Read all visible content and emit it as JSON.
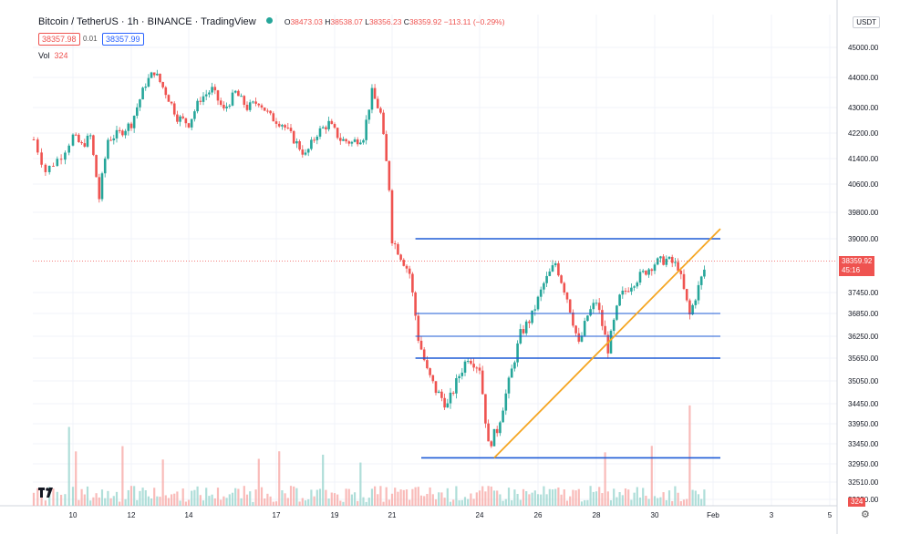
{
  "header": {
    "symbol": "Bitcoin / TetherUS",
    "interval": "1h",
    "exchange": "BINANCE",
    "platform": "TradingView",
    "open": "38473.03",
    "high": "38538.07",
    "low": "38356.23",
    "close": "38359.92",
    "change": "−113.11 (−0.29%)",
    "status_color": "#26a69a"
  },
  "quote": {
    "bid": "38357.98",
    "spread": "0.01",
    "ask": "38357.99"
  },
  "volume": {
    "label": "Vol",
    "value": "324"
  },
  "currency": "USDT",
  "last_price": {
    "value": "38359.92",
    "countdown": "45:16"
  },
  "colors": {
    "up": "#26a69a",
    "down": "#ef5350",
    "hline": "#1e5bd6",
    "trend": "#f5a623"
  },
  "icons": {
    "logo": "tradingview-logo-icon",
    "settings": "gear-icon"
  },
  "chart_data": {
    "type": "candlestick",
    "y_ticks": [
      "45000.00",
      "44000.00",
      "43000.00",
      "42200.00",
      "41400.00",
      "40600.00",
      "39800.00",
      "39000.00",
      "37450.00",
      "36850.00",
      "36250.00",
      "35650.00",
      "35050.00",
      "34450.00",
      "33950.00",
      "33450.00",
      "32950.00",
      "32510.00",
      "32050.00"
    ],
    "x_ticks": [
      "10",
      "12",
      "14",
      "17",
      "19",
      "21",
      "24",
      "26",
      "28",
      "30",
      "Feb",
      "3",
      "5"
    ],
    "ylim": [
      32050,
      45300
    ],
    "horizontal_levels": [
      39000,
      36850,
      36250,
      35650,
      33100
    ],
    "trendline": {
      "start": [
        "24",
        33100
      ],
      "end": [
        "Feb",
        39300
      ]
    },
    "close_path": [
      [
        "9",
        42000
      ],
      [
        "9.3",
        41000
      ],
      [
        "9.7",
        41500
      ],
      [
        "10",
        42100
      ],
      [
        "10.3",
        41800
      ],
      [
        "10.6",
        42100
      ],
      [
        "10.9",
        40200
      ],
      [
        "11.2",
        42000
      ],
      [
        "11.6",
        42200
      ],
      [
        "12",
        42500
      ],
      [
        "12.5",
        43800
      ],
      [
        "12.8",
        44200
      ],
      [
        "13.2",
        43500
      ],
      [
        "13.6",
        42700
      ],
      [
        "14",
        42500
      ],
      [
        "14.4",
        43300
      ],
      [
        "14.8",
        43600
      ],
      [
        "15.2",
        42900
      ],
      [
        "15.6",
        43500
      ],
      [
        "16",
        43000
      ],
      [
        "16.4",
        43200
      ],
      [
        "16.8",
        42700
      ],
      [
        "17.2",
        42500
      ],
      [
        "17.6",
        42000
      ],
      [
        "18",
        41500
      ],
      [
        "18.4",
        42200
      ],
      [
        "18.8",
        42500
      ],
      [
        "19.2",
        42000
      ],
      [
        "19.6",
        41900
      ],
      [
        "20",
        42100
      ],
      [
        "20.3",
        43500
      ],
      [
        "20.6",
        42800
      ],
      [
        "20.9",
        40500
      ],
      [
        "21",
        39000
      ],
      [
        "21.3",
        38500
      ],
      [
        "21.6",
        38000
      ],
      [
        "21.9",
        36200
      ],
      [
        "22.2",
        35300
      ],
      [
        "22.5",
        34800
      ],
      [
        "22.9",
        34400
      ],
      [
        "23.3",
        35200
      ],
      [
        "23.6",
        35700
      ],
      [
        "24",
        35400
      ],
      [
        "24.3",
        33400
      ],
      [
        "24.6",
        33800
      ],
      [
        "25",
        35000
      ],
      [
        "25.4",
        36300
      ],
      [
        "25.8",
        36800
      ],
      [
        "26.2",
        37700
      ],
      [
        "26.6",
        38300
      ],
      [
        "27",
        37300
      ],
      [
        "27.4",
        36000
      ],
      [
        "27.7",
        36800
      ],
      [
        "28",
        37200
      ],
      [
        "28.4",
        35900
      ],
      [
        "28.8",
        37300
      ],
      [
        "29.2",
        37700
      ],
      [
        "29.6",
        38000
      ],
      [
        "30",
        38300
      ],
      [
        "30.4",
        38400
      ],
      [
        "30.8",
        38200
      ],
      [
        "31.2",
        36800
      ],
      [
        "31.5",
        37600
      ],
      [
        "31.8",
        38360
      ]
    ]
  }
}
